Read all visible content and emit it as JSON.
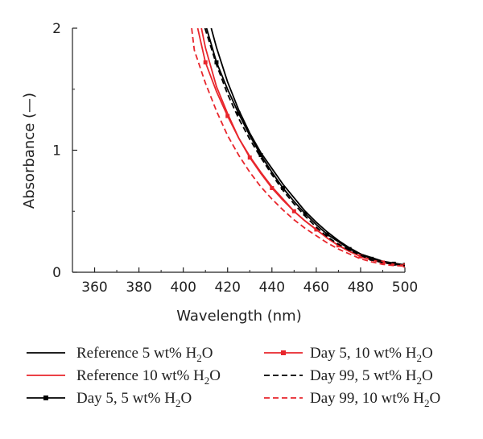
{
  "chart_data": {
    "type": "line",
    "title": "",
    "xlabel": "Wavelength (nm)",
    "ylabel": "Absorbance (—)",
    "xlim": [
      350,
      500
    ],
    "ylim": [
      0,
      2
    ],
    "x_ticks": [
      "360",
      "380",
      "400",
      "420",
      "440",
      "460",
      "480",
      "500"
    ],
    "y_ticks": [
      "0",
      "1",
      "2"
    ],
    "grid": false,
    "legend_position": "bottom",
    "series": [
      {
        "name": "Reference 5 wt% H2O",
        "legend_main": "Reference 5 wt% H",
        "legend_sub": "2",
        "legend_tail": "O",
        "color": "#000000",
        "style": "solid",
        "marker": "none",
        "x": [
          412.6,
          415,
          420,
          425,
          430,
          435,
          440,
          445,
          450,
          455,
          460,
          465,
          470,
          475,
          480,
          485,
          490,
          495,
          500
        ],
        "values": [
          2.0,
          1.84,
          1.56,
          1.33,
          1.14,
          0.98,
          0.85,
          0.72,
          0.61,
          0.5,
          0.41,
          0.33,
          0.26,
          0.2,
          0.15,
          0.12,
          0.09,
          0.075,
          0.06
        ]
      },
      {
        "name": "Reference 10 wt% H2O",
        "legend_main": "Reference 10 wt% H",
        "legend_sub": "2",
        "legend_tail": "O",
        "color": "#e8262c",
        "style": "solid",
        "marker": "none",
        "x": [
          408.2,
          410,
          415,
          420,
          425,
          430,
          435,
          440,
          445,
          450,
          455,
          460,
          465,
          470,
          475,
          480,
          485,
          490,
          495,
          500
        ],
        "values": [
          2.0,
          1.84,
          1.52,
          1.3,
          1.1,
          0.95,
          0.82,
          0.7,
          0.6,
          0.5,
          0.42,
          0.35,
          0.28,
          0.22,
          0.17,
          0.13,
          0.1,
          0.08,
          0.065,
          0.055
        ]
      },
      {
        "name": "Day 5, 5 wt% H2O",
        "legend_main": "Day 5, 5 wt% H",
        "legend_sub": "2",
        "legend_tail": "O",
        "color": "#000000",
        "style": "solid",
        "marker": "square",
        "x": [
          410.5,
          415,
          420,
          425,
          430,
          435,
          440,
          445,
          450,
          455,
          460,
          465,
          470,
          475,
          480,
          485,
          490,
          495,
          500
        ],
        "values": [
          2.0,
          1.72,
          1.5,
          1.3,
          1.12,
          0.96,
          0.82,
          0.69,
          0.58,
          0.48,
          0.39,
          0.31,
          0.25,
          0.19,
          0.15,
          0.11,
          0.085,
          0.07,
          0.06
        ]
      },
      {
        "name": "Day 5, 10 wt% H2O",
        "legend_main": "Day 5, 10 wt% H",
        "legend_sub": "2",
        "legend_tail": "O",
        "color": "#e8262c",
        "style": "solid",
        "marker": "square",
        "x": [
          406.5,
          410,
          415,
          420,
          425,
          430,
          435,
          440,
          445,
          450,
          455,
          460,
          465,
          470,
          475,
          480,
          485,
          490,
          495,
          500
        ],
        "values": [
          2.0,
          1.72,
          1.48,
          1.28,
          1.1,
          0.94,
          0.81,
          0.69,
          0.59,
          0.5,
          0.42,
          0.35,
          0.28,
          0.22,
          0.17,
          0.13,
          0.1,
          0.08,
          0.065,
          0.055
        ]
      },
      {
        "name": "Day 99, 5 wt% H2O",
        "legend_main": "Day 99, 5 wt% H",
        "legend_sub": "2",
        "legend_tail": "O",
        "color": "#000000",
        "style": "dashed",
        "marker": "none",
        "x": [
          409.8,
          415,
          420,
          425,
          430,
          435,
          440,
          445,
          450,
          455,
          460,
          465,
          470,
          475,
          480,
          485,
          490,
          495,
          500
        ],
        "values": [
          2.0,
          1.7,
          1.46,
          1.26,
          1.09,
          0.94,
          0.8,
          0.67,
          0.56,
          0.46,
          0.37,
          0.29,
          0.23,
          0.18,
          0.14,
          0.1,
          0.08,
          0.065,
          0.055
        ]
      },
      {
        "name": "Day 99, 10 wt% H2O",
        "legend_main": "Day 99, 10 wt% H",
        "legend_sub": "2",
        "legend_tail": "O",
        "color": "#e8262c",
        "style": "dashed",
        "marker": "none",
        "x": [
          403.8,
          405,
          410,
          415,
          420,
          425,
          430,
          435,
          440,
          445,
          450,
          455,
          460,
          465,
          470,
          475,
          480,
          485,
          490,
          495,
          500
        ],
        "values": [
          2.0,
          1.82,
          1.55,
          1.32,
          1.12,
          0.96,
          0.82,
          0.7,
          0.6,
          0.51,
          0.43,
          0.36,
          0.3,
          0.24,
          0.19,
          0.15,
          0.11,
          0.085,
          0.065,
          0.055,
          0.05
        ]
      }
    ]
  }
}
